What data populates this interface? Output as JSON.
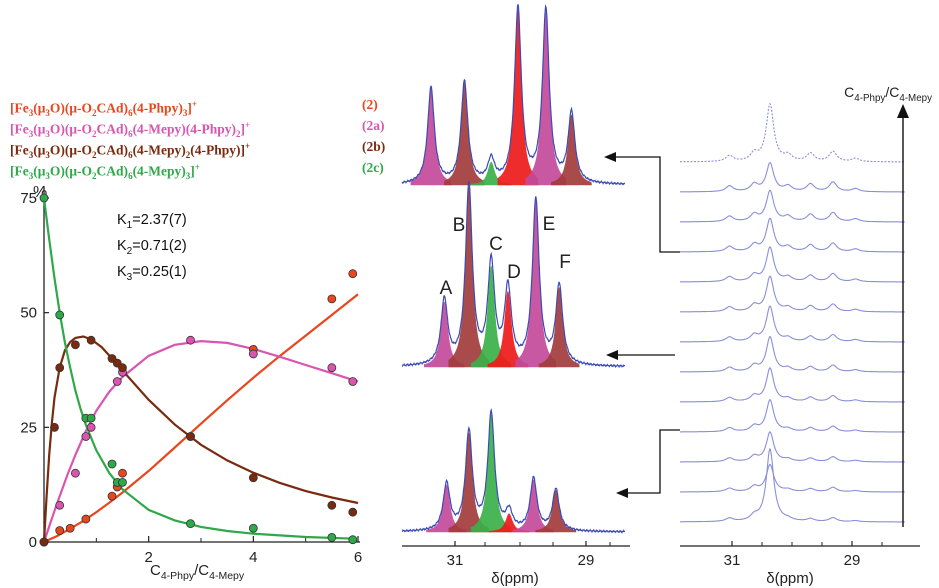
{
  "legend": [
    {
      "formula_html": "[Fe<sub>3</sub>(μ<sub>3</sub>O)(μ-O<sub>2</sub>CAd)<sub>6</sub>(4-Phpy)<sub>3</sub>]<sup>+</sup>",
      "tag": "(2)",
      "color": "#e8461e"
    },
    {
      "formula_html": "[Fe<sub>3</sub>(μ<sub>3</sub>O)(μ-O<sub>2</sub>CAd)<sub>6</sub>(4-Mepy)(4-Phpy)<sub>2</sub>]<sup>+</sup>",
      "tag": "(2a)",
      "color": "#d955b0"
    },
    {
      "formula_html": "[Fe<sub>3</sub>(μ<sub>3</sub>O)(μ-O<sub>2</sub>CAd)<sub>6</sub>(4-Mepy)<sub>2</sub>(4-Phpy)]<sup>+</sup>",
      "tag": "(2b)",
      "color": "#7a2a0e"
    },
    {
      "formula_html": "[Fe<sub>3</sub>(μ<sub>3</sub>O)(μ-O<sub>2</sub>CAd)<sub>6</sub>(4-Mepy)<sub>3</sub>]<sup>+</sup>",
      "tag": "(2c)",
      "color": "#2fa84a"
    }
  ],
  "constants": [
    {
      "name": "K",
      "sub": "1",
      "value": "=2.37(7)"
    },
    {
      "name": "K",
      "sub": "2",
      "value": "=0.71(2)"
    },
    {
      "name": "K",
      "sub": "3",
      "value": "=0.25(1)"
    }
  ],
  "chart_data": [
    {
      "type": "scatter",
      "ylabel": "%",
      "xlabel_html": "C<sub>4-Phpy</sub>/C<sub>4-Mepy</sub>",
      "xlim": [
        0,
        6
      ],
      "ylim": [
        0,
        75
      ],
      "xticks": [
        "2",
        "4",
        "6"
      ],
      "yticks": [
        "0",
        "25",
        "50",
        "75"
      ],
      "series": [
        {
          "name": "(2)",
          "color": "#e8461e",
          "points": [
            [
              0,
              0
            ],
            [
              0.3,
              2.5
            ],
            [
              0.5,
              3
            ],
            [
              0.8,
              5
            ],
            [
              1.3,
              10
            ],
            [
              1.4,
              12
            ],
            [
              1.5,
              15
            ],
            [
              2.8,
              23
            ],
            [
              4,
              42
            ],
            [
              5.5,
              53
            ],
            [
              5.9,
              58.5
            ]
          ],
          "fit": [
            [
              0,
              0
            ],
            [
              0.25,
              1.3
            ],
            [
              0.5,
              2.9
            ],
            [
              0.75,
              4.6
            ],
            [
              1,
              6.5
            ],
            [
              1.25,
              8.6
            ],
            [
              1.5,
              10.8
            ],
            [
              2,
              15.5
            ],
            [
              2.5,
              20.6
            ],
            [
              3,
              25.8
            ],
            [
              3.5,
              30.9
            ],
            [
              4,
              35.8
            ],
            [
              4.5,
              40.5
            ],
            [
              5,
              45
            ],
            [
              5.5,
              49.5
            ],
            [
              6,
              54
            ]
          ]
        },
        {
          "name": "(2a)",
          "color": "#d955b0",
          "points": [
            [
              0,
              0
            ],
            [
              0.3,
              8
            ],
            [
              0.6,
              15
            ],
            [
              0.8,
              23
            ],
            [
              0.9,
              25
            ],
            [
              1.4,
              35
            ],
            [
              1.5,
              37
            ],
            [
              2.8,
              44
            ],
            [
              4,
              41
            ],
            [
              5.5,
              38
            ],
            [
              5.9,
              35
            ]
          ],
          "fit": [
            [
              0,
              0
            ],
            [
              0.1,
              3.4
            ],
            [
              0.2,
              6.8
            ],
            [
              0.3,
              10
            ],
            [
              0.45,
              14.7
            ],
            [
              0.6,
              19
            ],
            [
              0.8,
              24.2
            ],
            [
              1,
              28.6
            ],
            [
              1.25,
              32.8
            ],
            [
              1.5,
              36
            ],
            [
              2,
              40.6
            ],
            [
              2.5,
              43
            ],
            [
              3,
              43.8
            ],
            [
              3.5,
              43.4
            ],
            [
              4,
              42.1
            ],
            [
              4.5,
              40.4
            ],
            [
              5,
              38.6
            ],
            [
              5.5,
              36.8
            ],
            [
              6,
              35
            ]
          ]
        },
        {
          "name": "(2b)",
          "color": "#7a2a0e",
          "points": [
            [
              0,
              0
            ],
            [
              0.2,
              25
            ],
            [
              0.3,
              38
            ],
            [
              0.6,
              43
            ],
            [
              0.9,
              44
            ],
            [
              1.3,
              40
            ],
            [
              1.4,
              39
            ],
            [
              1.5,
              38
            ],
            [
              2.8,
              23
            ],
            [
              4,
              14
            ],
            [
              5.5,
              8
            ],
            [
              5.9,
              6.5
            ]
          ],
          "fit": [
            [
              0,
              0
            ],
            [
              0.05,
              10
            ],
            [
              0.1,
              19
            ],
            [
              0.15,
              26
            ],
            [
              0.2,
              31.5
            ],
            [
              0.3,
              38
            ],
            [
              0.4,
              41.8
            ],
            [
              0.5,
              43.6
            ],
            [
              0.6,
              44.5
            ],
            [
              0.75,
              44.8
            ],
            [
              0.9,
              44.2
            ],
            [
              1.1,
              42.5
            ],
            [
              1.3,
              40
            ],
            [
              1.5,
              37.4
            ],
            [
              2,
              31
            ],
            [
              2.5,
              25.6
            ],
            [
              3,
              21.2
            ],
            [
              3.5,
              17.8
            ],
            [
              4,
              15.1
            ],
            [
              4.5,
              12.9
            ],
            [
              5,
              11.1
            ],
            [
              5.5,
              9.7
            ],
            [
              6,
              8.5
            ]
          ]
        },
        {
          "name": "(2c)",
          "color": "#2fa84a",
          "points": [
            [
              0,
              75
            ],
            [
              0.3,
              49.5
            ],
            [
              0.8,
              27
            ],
            [
              0.9,
              27
            ],
            [
              1.3,
              17
            ],
            [
              1.4,
              13
            ],
            [
              1.5,
              13
            ],
            [
              2.8,
              4
            ],
            [
              4,
              3
            ],
            [
              5.5,
              1
            ],
            [
              5.9,
              0.5
            ]
          ],
          "fit": [
            [
              0,
              75
            ],
            [
              0.1,
              66
            ],
            [
              0.2,
              57.5
            ],
            [
              0.3,
              50
            ],
            [
              0.4,
              43.5
            ],
            [
              0.5,
              38
            ],
            [
              0.6,
              33
            ],
            [
              0.7,
              29
            ],
            [
              0.8,
              25.5
            ],
            [
              1,
              20
            ],
            [
              1.25,
              15
            ],
            [
              1.5,
              11.5
            ],
            [
              2,
              7
            ],
            [
              2.5,
              4.7
            ],
            [
              3,
              3.3
            ],
            [
              3.5,
              2.4
            ],
            [
              4,
              1.8
            ],
            [
              5,
              1.1
            ],
            [
              6,
              0.7
            ]
          ]
        }
      ]
    },
    {
      "type": "area",
      "panel": "deconvoluted spectra",
      "xlabel": "δ(ppm)",
      "xticks": [
        "31",
        "29"
      ],
      "peak_labels": [
        "A",
        "B",
        "C",
        "D",
        "E",
        "F"
      ],
      "spectra": [
        {
          "which": "top",
          "peaks": [
            {
              "pos": 0.13,
              "h": 0.55,
              "color": "#c34a9a"
            },
            {
              "pos": 0.28,
              "h": 0.58,
              "color": "#a23c3c"
            },
            {
              "pos": 0.4,
              "h": 0.13,
              "color": "#3ab04a"
            },
            {
              "pos": 0.52,
              "h": 1.0,
              "color": "#ee1b1b"
            },
            {
              "pos": 0.645,
              "h": 0.99,
              "color": "#c34a9a"
            },
            {
              "pos": 0.76,
              "h": 0.4,
              "color": "#a23c3c"
            }
          ]
        },
        {
          "which": "middle",
          "peaks": [
            {
              "pos": 0.19,
              "h": 0.36,
              "color": "#c34a9a"
            },
            {
              "pos": 0.3,
              "h": 1.0,
              "color": "#a23c3c"
            },
            {
              "pos": 0.4,
              "h": 0.56,
              "color": "#3ab04a"
            },
            {
              "pos": 0.475,
              "h": 0.42,
              "color": "#ee1b1b"
            },
            {
              "pos": 0.6,
              "h": 0.92,
              "color": "#c34a9a"
            },
            {
              "pos": 0.705,
              "h": 0.44,
              "color": "#a23c3c"
            }
          ]
        },
        {
          "which": "bottom",
          "peaks": [
            {
              "pos": 0.2,
              "h": 0.36,
              "color": "#c34a9a"
            },
            {
              "pos": 0.3,
              "h": 0.76,
              "color": "#a23c3c"
            },
            {
              "pos": 0.4,
              "h": 0.9,
              "color": "#3ab04a"
            },
            {
              "pos": 0.48,
              "h": 0.14,
              "color": "#ee1b1b"
            },
            {
              "pos": 0.59,
              "h": 0.4,
              "color": "#c34a9a"
            },
            {
              "pos": 0.69,
              "h": 0.32,
              "color": "#a23c3c"
            }
          ]
        }
      ]
    },
    {
      "type": "line",
      "panel": "stacked spectra",
      "xlabel": "δ(ppm)",
      "xticks": [
        "31",
        "29"
      ],
      "arrow_label_html": "C<sub>4-Phpy</sub>/C<sub>4-Mepy</sub>",
      "stack_count": 13,
      "peak_positions": [
        0.22,
        0.33,
        0.4,
        0.48,
        0.58,
        0.68,
        0.78
      ]
    }
  ]
}
